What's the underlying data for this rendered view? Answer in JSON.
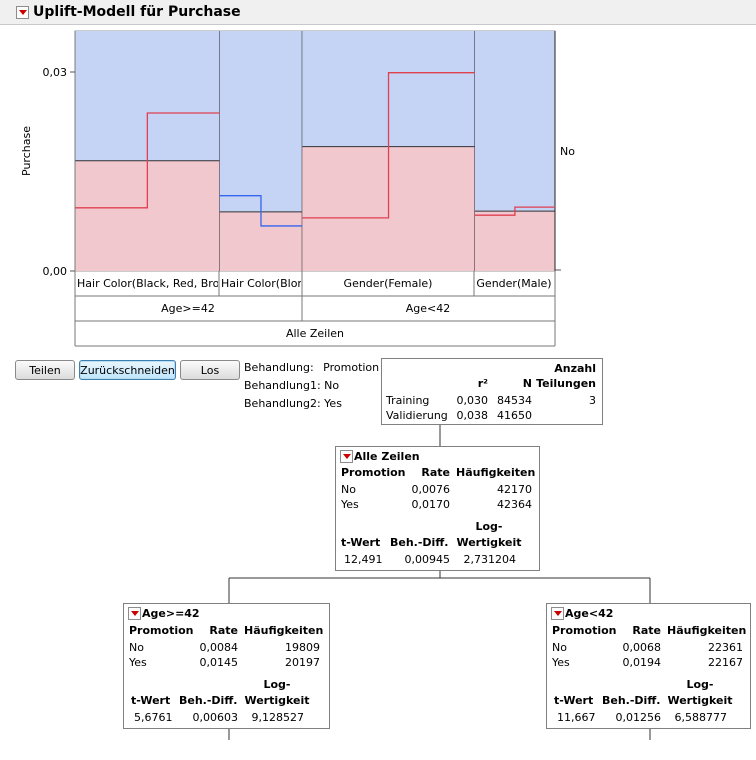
{
  "title": "Uplift-Modell für Purchase",
  "chart": {
    "y_axis_label": "Purchase",
    "y_ticks": [
      "0,03",
      "0,00"
    ],
    "right_label": "No",
    "leaf_labels": [
      "Hair Color(Black, Red, Brow",
      "Hair Color(Blon",
      "Gender(Female)",
      "Gender(Male)"
    ],
    "level2_labels": [
      "Age>=42",
      "Age<42"
    ],
    "root_label": "Alle Zeilen"
  },
  "chart_data": {
    "type": "step",
    "ylim": [
      0,
      0.0357
    ],
    "leaves": [
      {
        "name": "Hair Color(Black, Red, Brow",
        "count_share": 0.3015,
        "no_rate": 0.0094,
        "yes_rate": 0.0235,
        "base": 0.0164
      },
      {
        "name": "Hair Color(Blon",
        "count_share": 0.1719,
        "no_rate": 0.0112,
        "yes_rate": 0.0067,
        "base": 0.0088
      },
      {
        "name": "Gender(Female)",
        "count_share": 0.3596,
        "no_rate": 0.0079,
        "yes_rate": 0.0295,
        "base": 0.0185
      },
      {
        "name": "Gender(Male)",
        "count_share": 0.167,
        "no_rate": 0.0083,
        "yes_rate": 0.0095,
        "base": 0.0089
      }
    ]
  },
  "buttons": {
    "split": "Teilen",
    "prune": "Zurückschneiden",
    "go": "Los"
  },
  "treatment": {
    "label": "Behandlung:",
    "value": "Promotion",
    "t1_label": "Behandlung1:",
    "t1_value": "No",
    "t2_label": "Behandlung2:",
    "t2_value": "Yes"
  },
  "stats": {
    "h_r2": "r²",
    "h_n": "N",
    "h_anzahl": "Anzahl",
    "h_teilungen": "Teilungen",
    "rows": [
      {
        "label": "Training",
        "r2": "0,030",
        "n": "84534",
        "splits": "3"
      },
      {
        "label": "Validierung",
        "r2": "0,038",
        "n": "41650",
        "splits": ""
      }
    ]
  },
  "nodes": {
    "root": {
      "title": "Alle Zeilen",
      "h_promo": "Promotion",
      "h_rate": "Rate",
      "h_freq": "Häufigkeiten",
      "rows": [
        {
          "label": "No",
          "rate": "0,0076",
          "freq": "42170"
        },
        {
          "label": "Yes",
          "rate": "0,0170",
          "freq": "42364"
        }
      ],
      "h_t": "t-Wert",
      "h_diff": "Beh.-Diff.",
      "h_log1": "Log-",
      "h_log2": "Wertigkeit",
      "t": "12,491",
      "diff": "0,00945",
      "log": "2,731204"
    },
    "left": {
      "title": "Age>=42",
      "h_promo": "Promotion",
      "h_rate": "Rate",
      "h_freq": "Häufigkeiten",
      "rows": [
        {
          "label": "No",
          "rate": "0,0084",
          "freq": "19809"
        },
        {
          "label": "Yes",
          "rate": "0,0145",
          "freq": "20197"
        }
      ],
      "h_t": "t-Wert",
      "h_diff": "Beh.-Diff.",
      "h_log1": "Log-",
      "h_log2": "Wertigkeit",
      "t": "5,6761",
      "diff": "0,00603",
      "log": "9,128527"
    },
    "right": {
      "title": "Age<42",
      "h_promo": "Promotion",
      "h_rate": "Rate",
      "h_freq": "Häufigkeiten",
      "rows": [
        {
          "label": "No",
          "rate": "0,0068",
          "freq": "22361"
        },
        {
          "label": "Yes",
          "rate": "0,0194",
          "freq": "22167"
        }
      ],
      "h_t": "t-Wert",
      "h_diff": "Beh.-Diff.",
      "h_log1": "Log-",
      "h_log2": "Wertigkeit",
      "t": "11,667",
      "diff": "0,01256",
      "log": "6,588777"
    }
  },
  "colors": {
    "pink": "#f2c8cf",
    "blue": "#c5d3f5",
    "red": "#e04050",
    "blueline": "#3366ee"
  }
}
